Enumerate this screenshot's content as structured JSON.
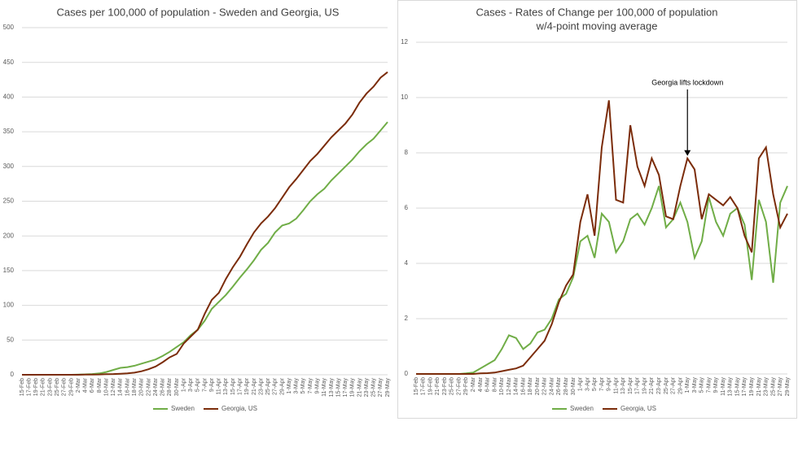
{
  "chart_data": [
    {
      "type": "line",
      "title": "Cases per 100,000 of population - Sweden and Georgia, US",
      "categories": [
        "15-Feb",
        "17-Feb",
        "19-Feb",
        "21-Feb",
        "23-Feb",
        "25-Feb",
        "27-Feb",
        "29-Feb",
        "2-Mar",
        "4-Mar",
        "6-Mar",
        "8-Mar",
        "10-Mar",
        "12-Mar",
        "14-Mar",
        "16-Mar",
        "18-Mar",
        "20-Mar",
        "22-Mar",
        "24-Mar",
        "26-Mar",
        "28-Mar",
        "30-Mar",
        "1-Apr",
        "3-Apr",
        "5-Apr",
        "7-Apr",
        "9-Apr",
        "11-Apr",
        "13-Apr",
        "15-Apr",
        "17-Apr",
        "19-Apr",
        "21-Apr",
        "23-Apr",
        "25-Apr",
        "27-Apr",
        "29-Apr",
        "1-May",
        "3-May",
        "5-May",
        "7-May",
        "9-May",
        "11-May",
        "13-May",
        "15-May",
        "17-May",
        "19-May",
        "21-May",
        "23-May",
        "25-May",
        "27-May",
        "29-May"
      ],
      "series": [
        {
          "name": "Sweden",
          "color": "#70ad47",
          "values": [
            0,
            0,
            0,
            0,
            0,
            0,
            0,
            0,
            0.3,
            0.6,
            1,
            2,
            4,
            7,
            10,
            11,
            13,
            16,
            19,
            22,
            27,
            33,
            40,
            47,
            57,
            65,
            78,
            95,
            105,
            115,
            127,
            140,
            152,
            165,
            180,
            190,
            205,
            215,
            218,
            225,
            237,
            250,
            260,
            268,
            280,
            290,
            300,
            310,
            322,
            332,
            340,
            352,
            364
          ]
        },
        {
          "name": "Georgia, US",
          "color": "#7b2c0a",
          "values": [
            0,
            0,
            0,
            0,
            0,
            0,
            0,
            0,
            0,
            0.2,
            0.3,
            0.5,
            0.8,
            1,
            1.5,
            2,
            3,
            5,
            8,
            12,
            18,
            25,
            30,
            45,
            55,
            65,
            88,
            108,
            118,
            138,
            155,
            170,
            188,
            205,
            218,
            228,
            240,
            255,
            270,
            282,
            295,
            308,
            318,
            330,
            342,
            352,
            362,
            375,
            392,
            405,
            415,
            428,
            436
          ]
        }
      ],
      "ylim": [
        0,
        500
      ],
      "yticks": [
        0,
        50,
        100,
        150,
        200,
        250,
        300,
        350,
        400,
        450,
        500
      ],
      "grid": true,
      "legend": "bottom"
    },
    {
      "type": "line",
      "title": "Cases - Rates of Change per 100,000 of population",
      "subtitle": "w/4-point moving average",
      "categories": [
        "15-Feb",
        "17-Feb",
        "19-Feb",
        "21-Feb",
        "23-Feb",
        "25-Feb",
        "27-Feb",
        "29-Feb",
        "2-Mar",
        "4-Mar",
        "6-Mar",
        "8-Mar",
        "10-Mar",
        "12-Mar",
        "14-Mar",
        "16-Mar",
        "18-Mar",
        "20-Mar",
        "22-Mar",
        "24-Mar",
        "26-Mar",
        "28-Mar",
        "30-Mar",
        "1-Apr",
        "3-Apr",
        "5-Apr",
        "7-Apr",
        "9-Apr",
        "11-Apr",
        "13-Apr",
        "15-Apr",
        "17-Apr",
        "19-Apr",
        "21-Apr",
        "23-Apr",
        "25-Apr",
        "27-Apr",
        "29-Apr",
        "1-May",
        "3-May",
        "5-May",
        "7-May",
        "9-May",
        "11-May",
        "13-May",
        "15-May",
        "17-May",
        "19-May",
        "21-May",
        "23-May",
        "25-May",
        "27-May",
        "29-May"
      ],
      "series": [
        {
          "name": "Sweden",
          "color": "#70ad47",
          "values": [
            0,
            0,
            0,
            0,
            0,
            0,
            0,
            0.02,
            0.05,
            0.2,
            0.35,
            0.5,
            0.9,
            1.4,
            1.3,
            0.9,
            1.1,
            1.5,
            1.6,
            2.0,
            2.7,
            2.9,
            3.5,
            4.8,
            5.0,
            4.2,
            5.8,
            5.5,
            4.4,
            4.8,
            5.6,
            5.8,
            5.4,
            6.0,
            6.8,
            5.3,
            5.6,
            6.2,
            5.5,
            4.2,
            4.8,
            6.4,
            5.5,
            5.0,
            5.8,
            6.0,
            5.4,
            3.4,
            6.3,
            5.5,
            3.3,
            6.2,
            6.8
          ]
        },
        {
          "name": "Georgia, US",
          "color": "#7b2c0a",
          "values": [
            0,
            0,
            0,
            0,
            0,
            0,
            0,
            0,
            0,
            0.02,
            0.03,
            0.05,
            0.1,
            0.15,
            0.2,
            0.3,
            0.6,
            0.9,
            1.2,
            1.8,
            2.6,
            3.2,
            3.6,
            5.5,
            6.5,
            5.0,
            8.2,
            9.9,
            6.3,
            6.2,
            9.0,
            7.5,
            6.8,
            7.8,
            7.2,
            5.7,
            5.6,
            6.8,
            7.8,
            7.4,
            5.6,
            6.5,
            6.3,
            6.1,
            6.4,
            6.0,
            5.0,
            4.4,
            7.8,
            8.2,
            6.5,
            5.3,
            5.8
          ]
        }
      ],
      "ylim": [
        0,
        12
      ],
      "yticks": [
        0,
        2,
        4,
        6,
        8,
        10,
        12
      ],
      "grid": true,
      "legend": "bottom",
      "annotation": {
        "text": "Georgia lifts lockdown",
        "x": "1-May"
      }
    }
  ]
}
